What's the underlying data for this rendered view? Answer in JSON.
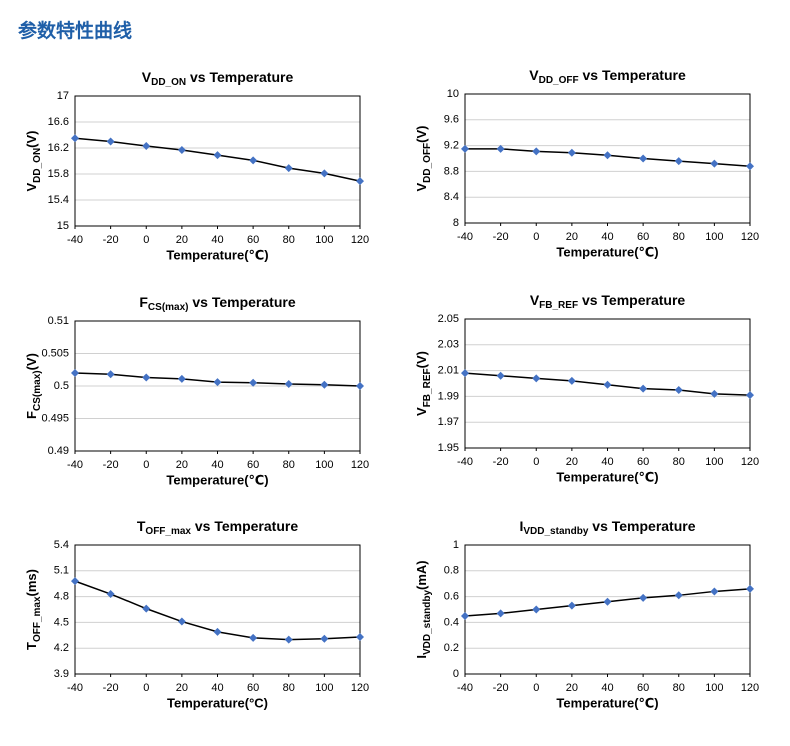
{
  "header": {
    "title": "参数特性曲线"
  },
  "chart_data": [
    {
      "type": "line",
      "title": [
        "V",
        "DD_ON",
        " vs Temperature"
      ],
      "y_label": [
        "V",
        "DD_ON",
        "(V)"
      ],
      "x_label": "Temperature(℃)",
      "x": [
        -40,
        -20,
        0,
        20,
        40,
        60,
        80,
        100,
        120
      ],
      "values": [
        16.35,
        16.3,
        16.23,
        16.17,
        16.09,
        16.01,
        15.89,
        15.81,
        15.69
      ],
      "color": "#4472c4",
      "xlim": [
        -40,
        120
      ],
      "xticks": [
        -40,
        -20,
        0,
        20,
        40,
        60,
        80,
        100,
        120
      ],
      "ylim": [
        15,
        17
      ],
      "yticks": [
        15,
        15.4,
        15.8,
        16.2,
        16.6,
        17
      ],
      "grid": true
    },
    {
      "type": "line",
      "title": [
        "V",
        "DD_OFF",
        " vs Temperature"
      ],
      "y_label": [
        "V",
        "DD_OFF",
        "(V)"
      ],
      "x_label": "Temperature(℃)",
      "x": [
        -40,
        -20,
        0,
        20,
        40,
        60,
        80,
        100,
        120
      ],
      "values": [
        9.15,
        9.15,
        9.11,
        9.09,
        9.05,
        9.0,
        8.96,
        8.92,
        8.88
      ],
      "color": "#4472c4",
      "xlim": [
        -40,
        120
      ],
      "xticks": [
        -40,
        -20,
        0,
        20,
        40,
        60,
        80,
        100,
        120
      ],
      "ylim": [
        8,
        10
      ],
      "yticks": [
        8,
        8.4,
        8.8,
        9.2,
        9.6,
        10
      ],
      "grid": true
    },
    {
      "type": "line",
      "title": [
        "F",
        "CS(max)",
        " vs Temperature"
      ],
      "y_label": [
        "F",
        "CS(max)",
        "(V)"
      ],
      "x_label": "Temperature(℃)",
      "x": [
        -40,
        -20,
        0,
        20,
        40,
        60,
        80,
        100,
        120
      ],
      "values": [
        0.502,
        0.5018,
        0.5013,
        0.5011,
        0.5006,
        0.5005,
        0.5003,
        0.5002,
        0.5
      ],
      "color": "#4472c4",
      "xlim": [
        -40,
        120
      ],
      "xticks": [
        -40,
        -20,
        0,
        20,
        40,
        60,
        80,
        100,
        120
      ],
      "ylim": [
        0.49,
        0.51
      ],
      "yticks": [
        0.49,
        0.495,
        0.5,
        0.505,
        0.51
      ],
      "grid": true
    },
    {
      "type": "line",
      "title": [
        "V",
        "FB_REF",
        " vs Temperature"
      ],
      "y_label": [
        "V",
        "FB_REF",
        "(V)"
      ],
      "x_label": "Temperature(℃)",
      "x": [
        -40,
        -20,
        0,
        20,
        40,
        60,
        80,
        100,
        120
      ],
      "values": [
        2.008,
        2.006,
        2.004,
        2.002,
        1.999,
        1.996,
        1.995,
        1.992,
        1.991
      ],
      "color": "#4472c4",
      "xlim": [
        -40,
        120
      ],
      "xticks": [
        -40,
        -20,
        0,
        20,
        40,
        60,
        80,
        100,
        120
      ],
      "ylim": [
        1.95,
        2.05
      ],
      "yticks": [
        1.95,
        1.97,
        1.99,
        2.01,
        2.03,
        2.05
      ],
      "grid": true
    },
    {
      "type": "line",
      "title": [
        "T",
        "OFF_max",
        " vs Temperature"
      ],
      "y_label": [
        "T",
        "OFF_max",
        "(ms)"
      ],
      "x_label": "Temperature(°C)",
      "x": [
        -40,
        -20,
        0,
        20,
        40,
        60,
        80,
        100,
        120
      ],
      "values": [
        4.98,
        4.83,
        4.66,
        4.51,
        4.39,
        4.32,
        4.3,
        4.31,
        4.33
      ],
      "color": "#4472c4",
      "xlim": [
        -40,
        120
      ],
      "xticks": [
        -40,
        -20,
        0,
        20,
        40,
        60,
        80,
        100,
        120
      ],
      "ylim": [
        3.9,
        5.4
      ],
      "yticks": [
        3.9,
        4.2,
        4.5,
        4.8,
        5.1,
        5.4
      ],
      "grid": true
    },
    {
      "type": "line",
      "title": [
        "I",
        "VDD_standby",
        " vs Temperature"
      ],
      "y_label": [
        "I",
        "VDD_standby",
        "(mA)"
      ],
      "x_label": "Temperature(℃)",
      "x": [
        -40,
        -20,
        0,
        20,
        40,
        60,
        80,
        100,
        120
      ],
      "values": [
        0.45,
        0.47,
        0.5,
        0.53,
        0.56,
        0.59,
        0.61,
        0.64,
        0.66
      ],
      "color": "#4472c4",
      "xlim": [
        -40,
        120
      ],
      "xticks": [
        -40,
        -20,
        0,
        20,
        40,
        60,
        80,
        100,
        120
      ],
      "ylim": [
        0,
        1
      ],
      "yticks": [
        0,
        0.2,
        0.4,
        0.6,
        0.8,
        1
      ],
      "grid": true
    }
  ]
}
